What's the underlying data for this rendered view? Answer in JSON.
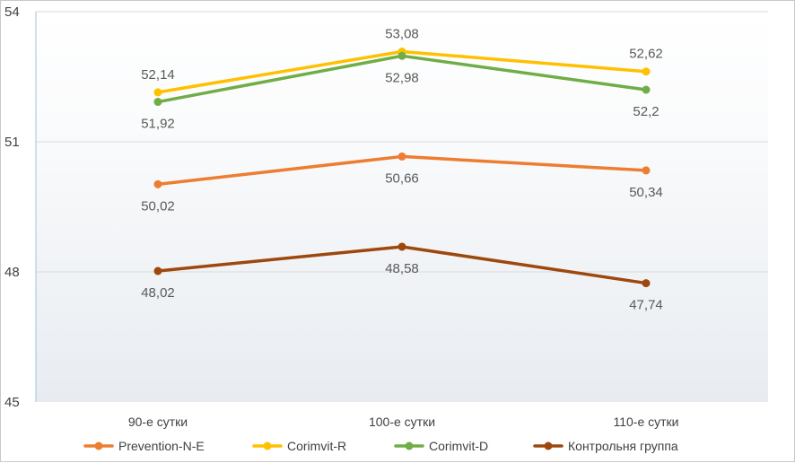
{
  "chart_data": {
    "type": "line",
    "categories": [
      "90-е сутки",
      "100-е сутки",
      "110-е сутки"
    ],
    "ylim": [
      45,
      54
    ],
    "yticks": [
      45,
      48,
      51,
      54
    ],
    "ytick_labels": [
      "45",
      "48",
      "51",
      "54"
    ],
    "grid": true,
    "legend_position": "bottom",
    "series": [
      {
        "name": "Prevention-N-E",
        "color": "#ed7d31",
        "values": [
          50.02,
          50.66,
          50.34
        ],
        "labels": [
          "50,02",
          "50,66",
          "50,34"
        ],
        "label_side": [
          "below",
          "below",
          "below"
        ]
      },
      {
        "name": "Corimvit-R",
        "color": "#ffc000",
        "values": [
          52.14,
          53.08,
          52.62
        ],
        "labels": [
          "52,14",
          "53,08",
          "52,62"
        ],
        "label_side": [
          "above",
          "above",
          "above"
        ]
      },
      {
        "name": "Corimvit-D",
        "color": "#70ad47",
        "values": [
          51.92,
          52.98,
          52.2
        ],
        "labels": [
          "51,92",
          "52,98",
          "52,2"
        ],
        "label_side": [
          "below",
          "below",
          "below"
        ]
      },
      {
        "name": "Контрольня группа",
        "color": "#9e480e",
        "values": [
          48.02,
          48.58,
          47.74
        ],
        "labels": [
          "48,02",
          "48,58",
          "47,74"
        ],
        "label_side": [
          "below",
          "below",
          "below"
        ]
      }
    ]
  }
}
